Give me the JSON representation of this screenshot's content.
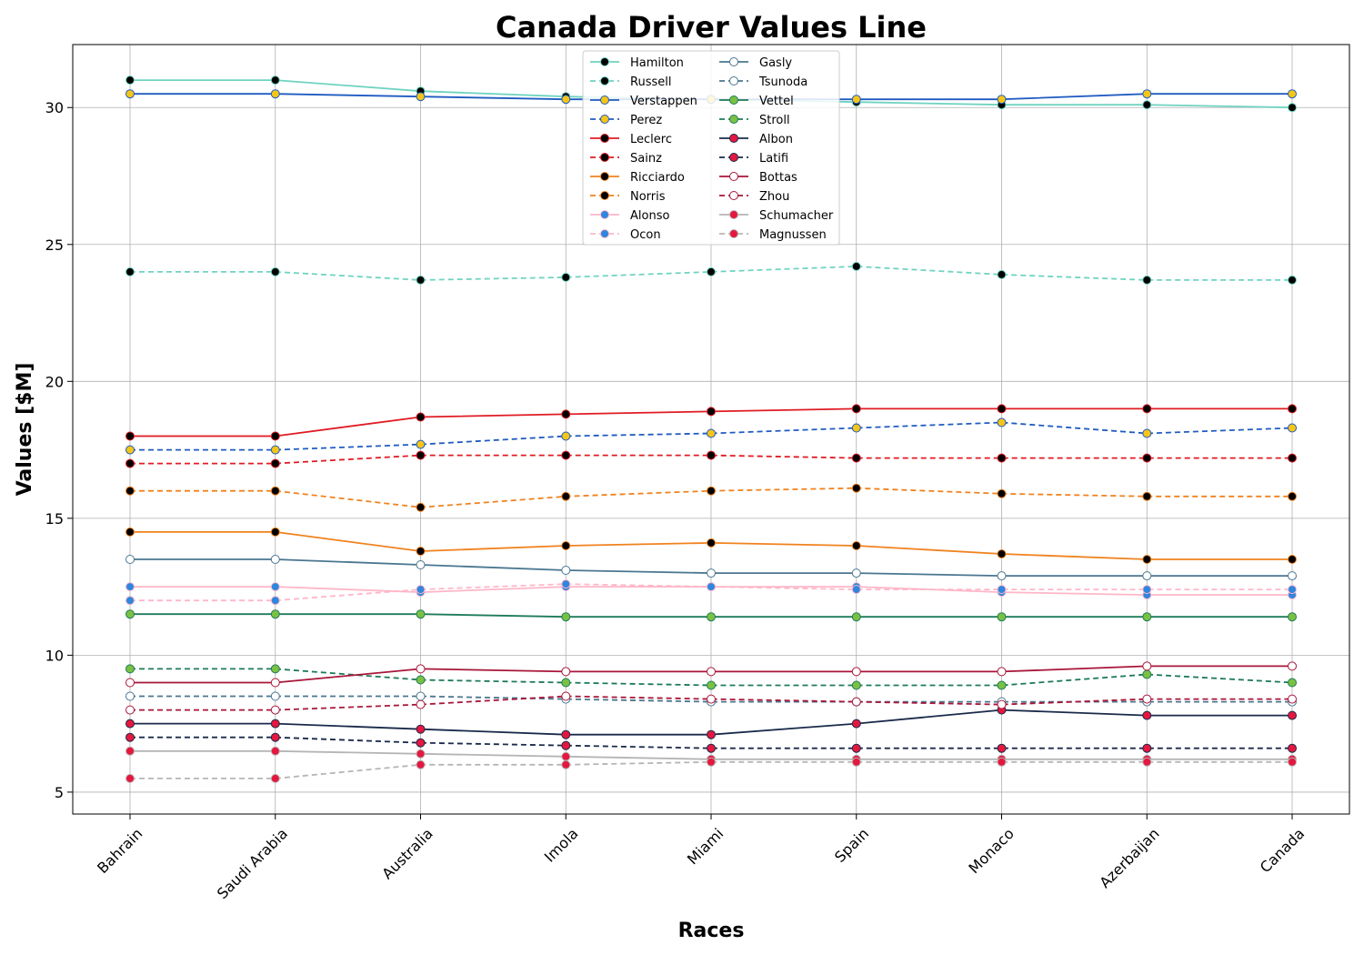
{
  "chart_data": {
    "type": "line",
    "title": "Canada Driver Values Line",
    "xlabel": "Races",
    "ylabel": "Values [$M]",
    "categories": [
      "Bahrain",
      "Saudi Arabia",
      "Australia",
      "Imola",
      "Miami",
      "Spain",
      "Monaco",
      "Azerbaijan",
      "Canada"
    ],
    "ylim": [
      4.2,
      32.3
    ],
    "yticks": [
      5,
      10,
      15,
      20,
      25,
      30
    ],
    "grid": true,
    "legend_position": "upper center",
    "series": [
      {
        "name": "Hamilton",
        "color": "#6fd3c0",
        "dash": false,
        "marker_fill": "#000000",
        "marker_edge": "#6fd3c0",
        "values": [
          31.0,
          31.0,
          30.6,
          30.4,
          30.3,
          30.2,
          30.1,
          30.1,
          30.0
        ]
      },
      {
        "name": "Russell",
        "color": "#6fd3c0",
        "dash": true,
        "marker_fill": "#000000",
        "marker_edge": "#6fd3c0",
        "values": [
          24.0,
          24.0,
          23.7,
          23.8,
          24.0,
          24.2,
          23.9,
          23.7,
          23.7
        ]
      },
      {
        "name": "Verstappen",
        "color": "#1f5bc0",
        "dash": false,
        "marker_fill": "#f5c518",
        "marker_edge": "#1f5bc0",
        "values": [
          30.5,
          30.5,
          30.4,
          30.3,
          30.3,
          30.3,
          30.3,
          30.5,
          30.5
        ]
      },
      {
        "name": "Perez",
        "color": "#1f5bc0",
        "dash": true,
        "marker_fill": "#f5c518",
        "marker_edge": "#1f5bc0",
        "values": [
          17.5,
          17.5,
          17.7,
          18.0,
          18.1,
          18.3,
          18.5,
          18.1,
          18.3
        ]
      },
      {
        "name": "Leclerc",
        "color": "#e01b24",
        "dash": false,
        "marker_fill": "#000000",
        "marker_edge": "#e01b24",
        "values": [
          18.0,
          18.0,
          18.7,
          18.8,
          18.9,
          19.0,
          19.0,
          19.0,
          19.0
        ]
      },
      {
        "name": "Sainz",
        "color": "#e01b24",
        "dash": true,
        "marker_fill": "#000000",
        "marker_edge": "#e01b24",
        "values": [
          17.0,
          17.0,
          17.3,
          17.3,
          17.3,
          17.2,
          17.2,
          17.2,
          17.2
        ]
      },
      {
        "name": "Ricciardo",
        "color": "#f0821e",
        "dash": false,
        "marker_fill": "#000000",
        "marker_edge": "#f0821e",
        "values": [
          14.5,
          14.5,
          13.8,
          14.0,
          14.1,
          14.0,
          13.7,
          13.5,
          13.5
        ]
      },
      {
        "name": "Norris",
        "color": "#f0821e",
        "dash": true,
        "marker_fill": "#000000",
        "marker_edge": "#f0821e",
        "values": [
          16.0,
          16.0,
          15.4,
          15.8,
          16.0,
          16.1,
          15.9,
          15.8,
          15.8
        ]
      },
      {
        "name": "Alonso",
        "color": "#ffb6c8",
        "dash": false,
        "marker_fill": "#2e86de",
        "marker_edge": "#ffb6c8",
        "values": [
          12.5,
          12.5,
          12.3,
          12.5,
          12.5,
          12.5,
          12.3,
          12.2,
          12.2
        ]
      },
      {
        "name": "Ocon",
        "color": "#ffb6c8",
        "dash": true,
        "marker_fill": "#2e86de",
        "marker_edge": "#ffb6c8",
        "values": [
          12.0,
          12.0,
          12.4,
          12.6,
          12.5,
          12.4,
          12.4,
          12.4,
          12.4
        ]
      },
      {
        "name": "Gasly",
        "color": "#4a7690",
        "dash": false,
        "marker_fill": "#ffffff",
        "marker_edge": "#4a7690",
        "values": [
          13.5,
          13.5,
          13.3,
          13.1,
          13.0,
          13.0,
          12.9,
          12.9,
          12.9
        ]
      },
      {
        "name": "Tsunoda",
        "color": "#4a7690",
        "dash": true,
        "marker_fill": "#ffffff",
        "marker_edge": "#4a7690",
        "values": [
          8.5,
          8.5,
          8.5,
          8.4,
          8.3,
          8.3,
          8.3,
          8.3,
          8.3
        ]
      },
      {
        "name": "Vettel",
        "color": "#1e7b5a",
        "dash": false,
        "marker_fill": "#7ac143",
        "marker_edge": "#1e7b5a",
        "values": [
          11.5,
          11.5,
          11.5,
          11.4,
          11.4,
          11.4,
          11.4,
          11.4,
          11.4
        ]
      },
      {
        "name": "Stroll",
        "color": "#1e7b5a",
        "dash": true,
        "marker_fill": "#7ac143",
        "marker_edge": "#1e7b5a",
        "values": [
          9.5,
          9.5,
          9.1,
          9.0,
          8.9,
          8.9,
          8.9,
          9.3,
          9.0
        ]
      },
      {
        "name": "Albon",
        "color": "#1a2a4a",
        "dash": false,
        "marker_fill": "#e5173f",
        "marker_edge": "#1a2a4a",
        "values": [
          7.5,
          7.5,
          7.3,
          7.1,
          7.1,
          7.5,
          8.0,
          7.8,
          7.8
        ]
      },
      {
        "name": "Latifi",
        "color": "#1a2a4a",
        "dash": true,
        "marker_fill": "#e5173f",
        "marker_edge": "#1a2a4a",
        "values": [
          7.0,
          7.0,
          6.8,
          6.7,
          6.6,
          6.6,
          6.6,
          6.6,
          6.6
        ]
      },
      {
        "name": "Bottas",
        "color": "#a8163a",
        "dash": false,
        "marker_fill": "#ffffff",
        "marker_edge": "#a8163a",
        "values": [
          9.0,
          9.0,
          9.5,
          9.4,
          9.4,
          9.4,
          9.4,
          9.6,
          9.6
        ]
      },
      {
        "name": "Zhou",
        "color": "#a8163a",
        "dash": true,
        "marker_fill": "#ffffff",
        "marker_edge": "#a8163a",
        "values": [
          8.0,
          8.0,
          8.2,
          8.5,
          8.4,
          8.3,
          8.2,
          8.4,
          8.4
        ]
      },
      {
        "name": "Schumacher",
        "color": "#b5b5b5",
        "dash": false,
        "marker_fill": "#e5173f",
        "marker_edge": "#b5b5b5",
        "values": [
          6.5,
          6.5,
          6.4,
          6.3,
          6.2,
          6.2,
          6.2,
          6.2,
          6.2
        ]
      },
      {
        "name": "Magnussen",
        "color": "#b5b5b5",
        "dash": true,
        "marker_fill": "#e5173f",
        "marker_edge": "#b5b5b5",
        "values": [
          5.5,
          5.5,
          6.0,
          6.0,
          6.1,
          6.1,
          6.1,
          6.1,
          6.1
        ]
      }
    ]
  }
}
